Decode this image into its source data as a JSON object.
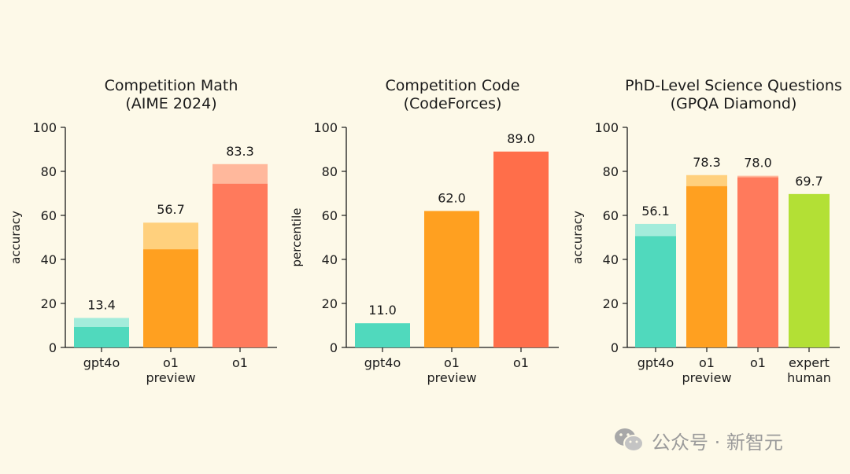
{
  "colors": {
    "background": "#fdf9e8",
    "axis": "#1a1a1a",
    "gpt4o": "#50d9bd",
    "gpt4o_light": "#a3ecdb",
    "o1_preview": "#ffa020",
    "o1_preview_light": "#ffd07d",
    "o1": "#ff7a5c",
    "o1_light": "#ffb89c",
    "o1_code": "#ff6e4a",
    "expert_human": "#b3e035"
  },
  "watermark": {
    "text": "公众号 · 新智元",
    "icon": "wechat-icon"
  },
  "chart_data": [
    {
      "type": "bar",
      "title": "Competition Math",
      "subtitle": "(AIME 2024)",
      "ylabel": "accuracy",
      "ylim": [
        0,
        100
      ],
      "yticks": [
        0,
        20,
        40,
        60,
        80,
        100
      ],
      "categories": [
        [
          "gpt4o"
        ],
        [
          "o1",
          "preview"
        ],
        [
          "o1"
        ]
      ],
      "values": [
        13.4,
        56.7,
        83.3
      ],
      "base_values": [
        9.3,
        44.6,
        74.4
      ],
      "value_labels": [
        "13.4",
        "56.7",
        "83.3"
      ],
      "colors": [
        "gpt4o",
        "o1_preview",
        "o1"
      ],
      "light_colors": [
        "gpt4o_light",
        "o1_preview_light",
        "o1_light"
      ]
    },
    {
      "type": "bar",
      "title": "Competition Code",
      "subtitle": "(CodeForces)",
      "ylabel": "percentile",
      "ylim": [
        0,
        100
      ],
      "yticks": [
        0,
        20,
        40,
        60,
        80,
        100
      ],
      "categories": [
        [
          "gpt4o"
        ],
        [
          "o1",
          "preview"
        ],
        [
          "o1"
        ]
      ],
      "values": [
        11.0,
        62.0,
        89.0
      ],
      "base_values": [
        11.0,
        62.0,
        89.0
      ],
      "value_labels": [
        "11.0",
        "62.0",
        "89.0"
      ],
      "colors": [
        "gpt4o",
        "o1_preview",
        "o1_code"
      ],
      "light_colors": [
        "gpt4o_light",
        "o1_preview_light",
        "o1_light"
      ]
    },
    {
      "type": "bar",
      "title": "PhD-Level Science Questions",
      "subtitle": "(GPQA Diamond)",
      "ylabel": "accuracy",
      "ylim": [
        0,
        100
      ],
      "yticks": [
        0,
        20,
        40,
        60,
        80,
        100
      ],
      "categories": [
        [
          "gpt4o"
        ],
        [
          "o1",
          "preview"
        ],
        [
          "o1"
        ],
        [
          "expert",
          "human"
        ]
      ],
      "values": [
        56.1,
        78.3,
        78.0,
        69.7
      ],
      "base_values": [
        50.6,
        73.3,
        77.3,
        69.7
      ],
      "value_labels": [
        "56.1",
        "78.3",
        "78.0",
        "69.7"
      ],
      "colors": [
        "gpt4o",
        "o1_preview",
        "o1",
        "expert_human"
      ],
      "light_colors": [
        "gpt4o_light",
        "o1_preview_light",
        "o1_light",
        "expert_human"
      ]
    }
  ]
}
